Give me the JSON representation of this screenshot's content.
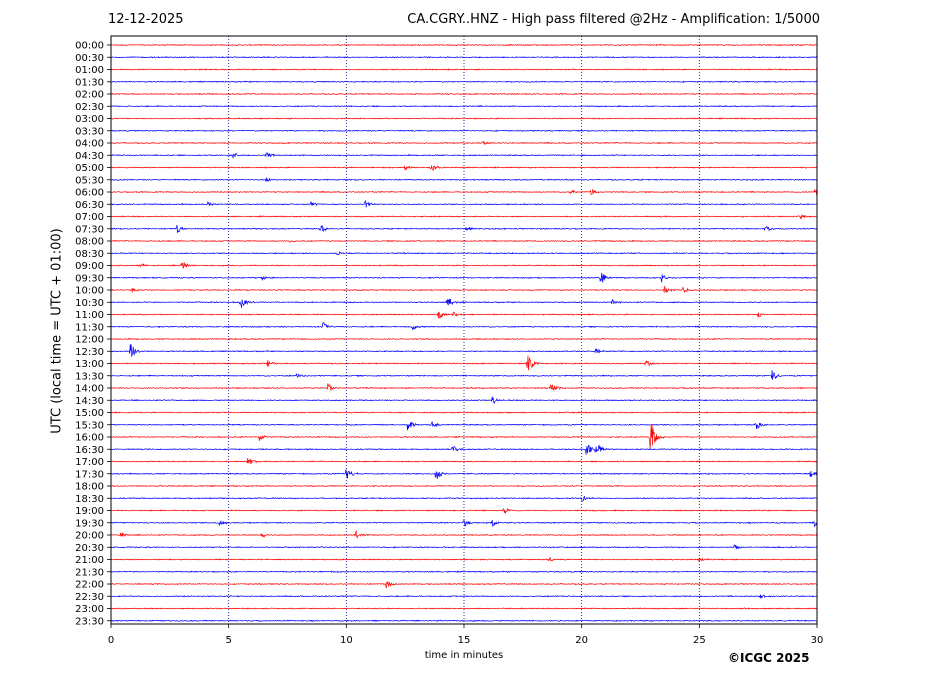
{
  "header": {
    "date": "12-12-2025",
    "title": "CA.CGRY..HNZ - High pass filtered @2Hz - Amplification: 1/5000"
  },
  "footer": {
    "copyright": "©ICGC 2025"
  },
  "colors": {
    "trace_a": "#ff0000",
    "trace_b": "#0000ff",
    "grid": "#000080"
  },
  "chart_data": {
    "type": "line",
    "xlabel": "time in minutes",
    "ylabel": "UTC (local time = UTC + 01:00)",
    "xlim": [
      0,
      30
    ],
    "xticks": [
      0,
      5,
      10,
      15,
      20,
      25,
      30
    ],
    "grid": "vertical dotted lines at x ticks",
    "row_color_cycle": [
      "red",
      "blue"
    ],
    "rows": [
      "00:00",
      "00:30",
      "01:00",
      "01:30",
      "02:00",
      "02:30",
      "03:00",
      "03:30",
      "04:00",
      "04:30",
      "05:00",
      "05:30",
      "06:00",
      "06:30",
      "07:00",
      "07:30",
      "08:00",
      "08:30",
      "09:00",
      "09:30",
      "10:00",
      "10:30",
      "11:00",
      "11:30",
      "12:00",
      "12:30",
      "13:00",
      "13:30",
      "14:00",
      "14:30",
      "15:00",
      "15:30",
      "16:00",
      "16:30",
      "17:00",
      "17:30",
      "18:00",
      "18:30",
      "19:00",
      "19:30",
      "20:00",
      "20:30",
      "21:00",
      "21:30",
      "22:00",
      "22:30",
      "23:00",
      "23:30"
    ],
    "events": [
      {
        "row": "04:00",
        "t": 15.8,
        "amp": 0.25
      },
      {
        "row": "04:30",
        "t": 5.2,
        "amp": 0.4
      },
      {
        "row": "04:30",
        "t": 6.6,
        "amp": 0.45
      },
      {
        "row": "05:00",
        "t": 12.5,
        "amp": 0.3
      },
      {
        "row": "05:00",
        "t": 13.6,
        "amp": 0.6
      },
      {
        "row": "05:30",
        "t": 6.6,
        "amp": 0.3
      },
      {
        "row": "06:00",
        "t": 19.5,
        "amp": 0.35
      },
      {
        "row": "06:00",
        "t": 20.4,
        "amp": 0.4
      },
      {
        "row": "06:00",
        "t": 29.9,
        "amp": 0.6
      },
      {
        "row": "06:30",
        "t": 4.1,
        "amp": 0.3
      },
      {
        "row": "06:30",
        "t": 8.5,
        "amp": 0.35
      },
      {
        "row": "06:30",
        "t": 10.8,
        "amp": 0.5
      },
      {
        "row": "07:00",
        "t": 29.2,
        "amp": 0.5
      },
      {
        "row": "07:30",
        "t": 2.8,
        "amp": 0.5
      },
      {
        "row": "07:30",
        "t": 8.9,
        "amp": 0.5
      },
      {
        "row": "07:30",
        "t": 15.1,
        "amp": 0.4
      },
      {
        "row": "07:30",
        "t": 27.8,
        "amp": 0.4
      },
      {
        "row": "08:00",
        "t": 7.6,
        "amp": 0.25
      },
      {
        "row": "08:30",
        "t": 9.6,
        "amp": 0.25
      },
      {
        "row": "09:00",
        "t": 1.3,
        "amp": 0.35
      },
      {
        "row": "09:00",
        "t": 3.0,
        "amp": 0.8
      },
      {
        "row": "09:30",
        "t": 6.4,
        "amp": 0.3
      },
      {
        "row": "09:30",
        "t": 20.8,
        "amp": 0.9
      },
      {
        "row": "09:30",
        "t": 23.4,
        "amp": 0.5
      },
      {
        "row": "10:00",
        "t": 0.9,
        "amp": 0.3
      },
      {
        "row": "10:00",
        "t": 23.5,
        "amp": 0.6
      },
      {
        "row": "10:00",
        "t": 24.3,
        "amp": 0.5
      },
      {
        "row": "10:30",
        "t": 5.5,
        "amp": 0.9
      },
      {
        "row": "10:30",
        "t": 14.3,
        "amp": 0.9
      },
      {
        "row": "10:30",
        "t": 21.3,
        "amp": 0.4
      },
      {
        "row": "11:00",
        "t": 13.9,
        "amp": 0.7
      },
      {
        "row": "11:00",
        "t": 14.5,
        "amp": 0.4
      },
      {
        "row": "11:00",
        "t": 27.5,
        "amp": 0.35
      },
      {
        "row": "11:30",
        "t": 9.0,
        "amp": 0.6
      },
      {
        "row": "11:30",
        "t": 12.8,
        "amp": 0.4
      },
      {
        "row": "12:30",
        "t": 0.8,
        "amp": 1.2
      },
      {
        "row": "12:30",
        "t": 20.6,
        "amp": 0.4
      },
      {
        "row": "13:00",
        "t": 6.6,
        "amp": 0.5
      },
      {
        "row": "13:00",
        "t": 17.7,
        "amp": 1.5
      },
      {
        "row": "13:00",
        "t": 22.7,
        "amp": 0.6
      },
      {
        "row": "13:30",
        "t": 28.1,
        "amp": 0.8
      },
      {
        "row": "13:30",
        "t": 7.9,
        "amp": 0.4
      },
      {
        "row": "14:00",
        "t": 9.2,
        "amp": 0.7
      },
      {
        "row": "14:00",
        "t": 18.7,
        "amp": 0.7
      },
      {
        "row": "14:30",
        "t": 16.2,
        "amp": 0.5
      },
      {
        "row": "15:30",
        "t": 12.6,
        "amp": 0.8
      },
      {
        "row": "15:30",
        "t": 13.6,
        "amp": 0.5
      },
      {
        "row": "15:30",
        "t": 27.4,
        "amp": 0.7
      },
      {
        "row": "16:00",
        "t": 6.3,
        "amp": 0.6
      },
      {
        "row": "16:00",
        "t": 22.9,
        "amp": 2.5
      },
      {
        "row": "16:30",
        "t": 20.2,
        "amp": 0.8
      },
      {
        "row": "16:30",
        "t": 20.6,
        "amp": 0.9
      },
      {
        "row": "16:30",
        "t": 14.5,
        "amp": 0.5
      },
      {
        "row": "17:00",
        "t": 5.8,
        "amp": 0.7
      },
      {
        "row": "17:30",
        "t": 10.0,
        "amp": 0.9
      },
      {
        "row": "17:30",
        "t": 13.8,
        "amp": 1.0
      },
      {
        "row": "17:30",
        "t": 29.7,
        "amp": 0.5
      },
      {
        "row": "18:30",
        "t": 20.0,
        "amp": 0.4
      },
      {
        "row": "19:00",
        "t": 16.7,
        "amp": 0.6
      },
      {
        "row": "19:30",
        "t": 4.6,
        "amp": 0.4
      },
      {
        "row": "19:30",
        "t": 15.0,
        "amp": 0.5
      },
      {
        "row": "19:30",
        "t": 16.2,
        "amp": 0.5
      },
      {
        "row": "19:30",
        "t": 29.9,
        "amp": 0.5
      },
      {
        "row": "20:00",
        "t": 0.4,
        "amp": 0.5
      },
      {
        "row": "20:00",
        "t": 10.4,
        "amp": 0.5
      },
      {
        "row": "20:00",
        "t": 6.4,
        "amp": 0.45
      },
      {
        "row": "20:30",
        "t": 26.5,
        "amp": 0.4
      },
      {
        "row": "21:00",
        "t": 18.6,
        "amp": 0.4
      },
      {
        "row": "21:00",
        "t": 25.0,
        "amp": 0.35
      },
      {
        "row": "22:00",
        "t": 11.7,
        "amp": 0.5
      },
      {
        "row": "22:30",
        "t": 27.6,
        "amp": 0.4
      }
    ]
  }
}
